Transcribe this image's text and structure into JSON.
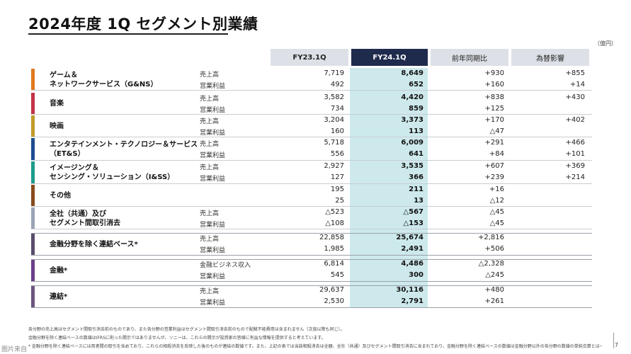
{
  "title": "2024年度 1Q セグメント別業績",
  "unit": "（億円）",
  "headers": {
    "fy23": "FY23.1Q",
    "fy24": "FY24.1Q",
    "yoy": "前年同期比",
    "fx": "為替影響"
  },
  "colors": {
    "header_highlight": "#1f2b4d",
    "column_highlight": "#cde9ec",
    "game": "#e07b1f",
    "music": "#c4324a",
    "movie": "#c19a2b",
    "ets": "#1e4d8f",
    "iss": "#1f9b8c",
    "other": "#8a4a1a",
    "corp": "#9aa4b8",
    "nonfin": "#5b4d6e",
    "fin": "#6b3f8a",
    "consol": "#6d5580"
  },
  "segments": [
    {
      "key": "game",
      "name_lines": [
        "ゲーム＆",
        "ネットワークサービス（G&NS）"
      ],
      "rows": [
        {
          "label": "売上高",
          "fy23": "7,719",
          "fy24": "8,649",
          "yoy": "+930",
          "fx": "+855"
        },
        {
          "label": "営業利益",
          "fy23": "492",
          "fy24": "652",
          "yoy": "+160",
          "fx": "+14"
        }
      ]
    },
    {
      "key": "music",
      "name_lines": [
        "音楽"
      ],
      "rows": [
        {
          "label": "売上高",
          "fy23": "3,582",
          "fy24": "4,420",
          "yoy": "+838",
          "fx": "+430"
        },
        {
          "label": "営業利益",
          "fy23": "734",
          "fy24": "859",
          "yoy": "+125",
          "fx": ""
        }
      ]
    },
    {
      "key": "movie",
      "name_lines": [
        "映画"
      ],
      "rows": [
        {
          "label": "売上高",
          "fy23": "3,204",
          "fy24": "3,373",
          "yoy": "+170",
          "fx": "+402"
        },
        {
          "label": "営業利益",
          "fy23": "160",
          "fy24": "113",
          "yoy": "△47",
          "fx": ""
        }
      ]
    },
    {
      "key": "ets",
      "name_lines": [
        "エンタテインメント・テクノロジー＆サービス",
        "（ET&S）"
      ],
      "rows": [
        {
          "label": "売上高",
          "fy23": "5,718",
          "fy24": "6,009",
          "yoy": "+291",
          "fx": "+466"
        },
        {
          "label": "営業利益",
          "fy23": "556",
          "fy24": "641",
          "yoy": "+84",
          "fx": "+101"
        }
      ]
    },
    {
      "key": "iss",
      "name_lines": [
        "イメージング＆",
        "センシング・ソリューション（I&SS）"
      ],
      "rows": [
        {
          "label": "売上高",
          "fy23": "2,927",
          "fy24": "3,535",
          "yoy": "+607",
          "fx": "+369"
        },
        {
          "label": "営業利益",
          "fy23": "127",
          "fy24": "366",
          "yoy": "+239",
          "fx": "+214"
        }
      ]
    },
    {
      "key": "other",
      "name_lines": [
        "その他"
      ],
      "rows": [
        {
          "label": "",
          "fy23": "195",
          "fy24": "211",
          "yoy": "+16",
          "fx": ""
        },
        {
          "label": "",
          "fy23": "25",
          "fy24": "13",
          "yoy": "△12",
          "fx": ""
        }
      ]
    },
    {
      "key": "corp",
      "name_lines": [
        "全社（共通）及び",
        "セグメント間取引消去"
      ],
      "rows": [
        {
          "label": "売上高",
          "fy23": "△523",
          "fy24": "△567",
          "yoy": "△45",
          "fx": ""
        },
        {
          "label": "営業利益",
          "fy23": "△108",
          "fy24": "△153",
          "yoy": "△45",
          "fx": ""
        }
      ]
    },
    {
      "key": "nonfin",
      "name_lines": [
        "金融分野を除く連結ベース*"
      ],
      "rows": [
        {
          "label": "売上高",
          "fy23": "22,858",
          "fy24": "25,674",
          "yoy": "+2,816",
          "fx": ""
        },
        {
          "label": "営業利益",
          "fy23": "1,985",
          "fy24": "2,491",
          "yoy": "+506",
          "fx": ""
        }
      ]
    },
    {
      "key": "fin",
      "name_lines": [
        "金融*"
      ],
      "rows": [
        {
          "label": "金融ビジネス収入",
          "fy23": "6,814",
          "fy24": "4,486",
          "yoy": "△2,328",
          "fx": ""
        },
        {
          "label": "営業利益",
          "fy23": "545",
          "fy24": "300",
          "yoy": "△245",
          "fx": ""
        }
      ]
    },
    {
      "key": "consol",
      "name_lines": [
        "連結*"
      ],
      "rows": [
        {
          "label": "売上高",
          "fy23": "29,637",
          "fy24": "30,116",
          "yoy": "+480",
          "fx": ""
        },
        {
          "label": "営業利益",
          "fy23": "2,530",
          "fy24": "2,791",
          "yoy": "+261",
          "fx": ""
        }
      ]
    }
  ],
  "notes": [
    "各分野の売上高はセグメント間取引消去前のものであり、また各分野の営業利益はセグメント間取引消去前のもので配賦不能費用は含まれません（次頁以降も同じ）。",
    "金融分野を除く連結ベースの数値はIFRSに則った開示ではありませんが、ソニーは、これらの開示が投資家の皆様に有益な情報を提供すると考えています。",
    "* 金融分野を除く連結ベースには両者間の取引を含めており、これらの相殺消去を反映した後のものが連結の数値です。また、上記の表では当該相殺消去は全額、全社（共通）及びセグメント間取引消去に含まれており、金融分野を除く連結ベースの数値は金融分野以外の各分野の数値の単純合算とは一致しません（次頁以降も同じ）。"
  ],
  "page_number": "7",
  "watermark": "图片来自"
}
